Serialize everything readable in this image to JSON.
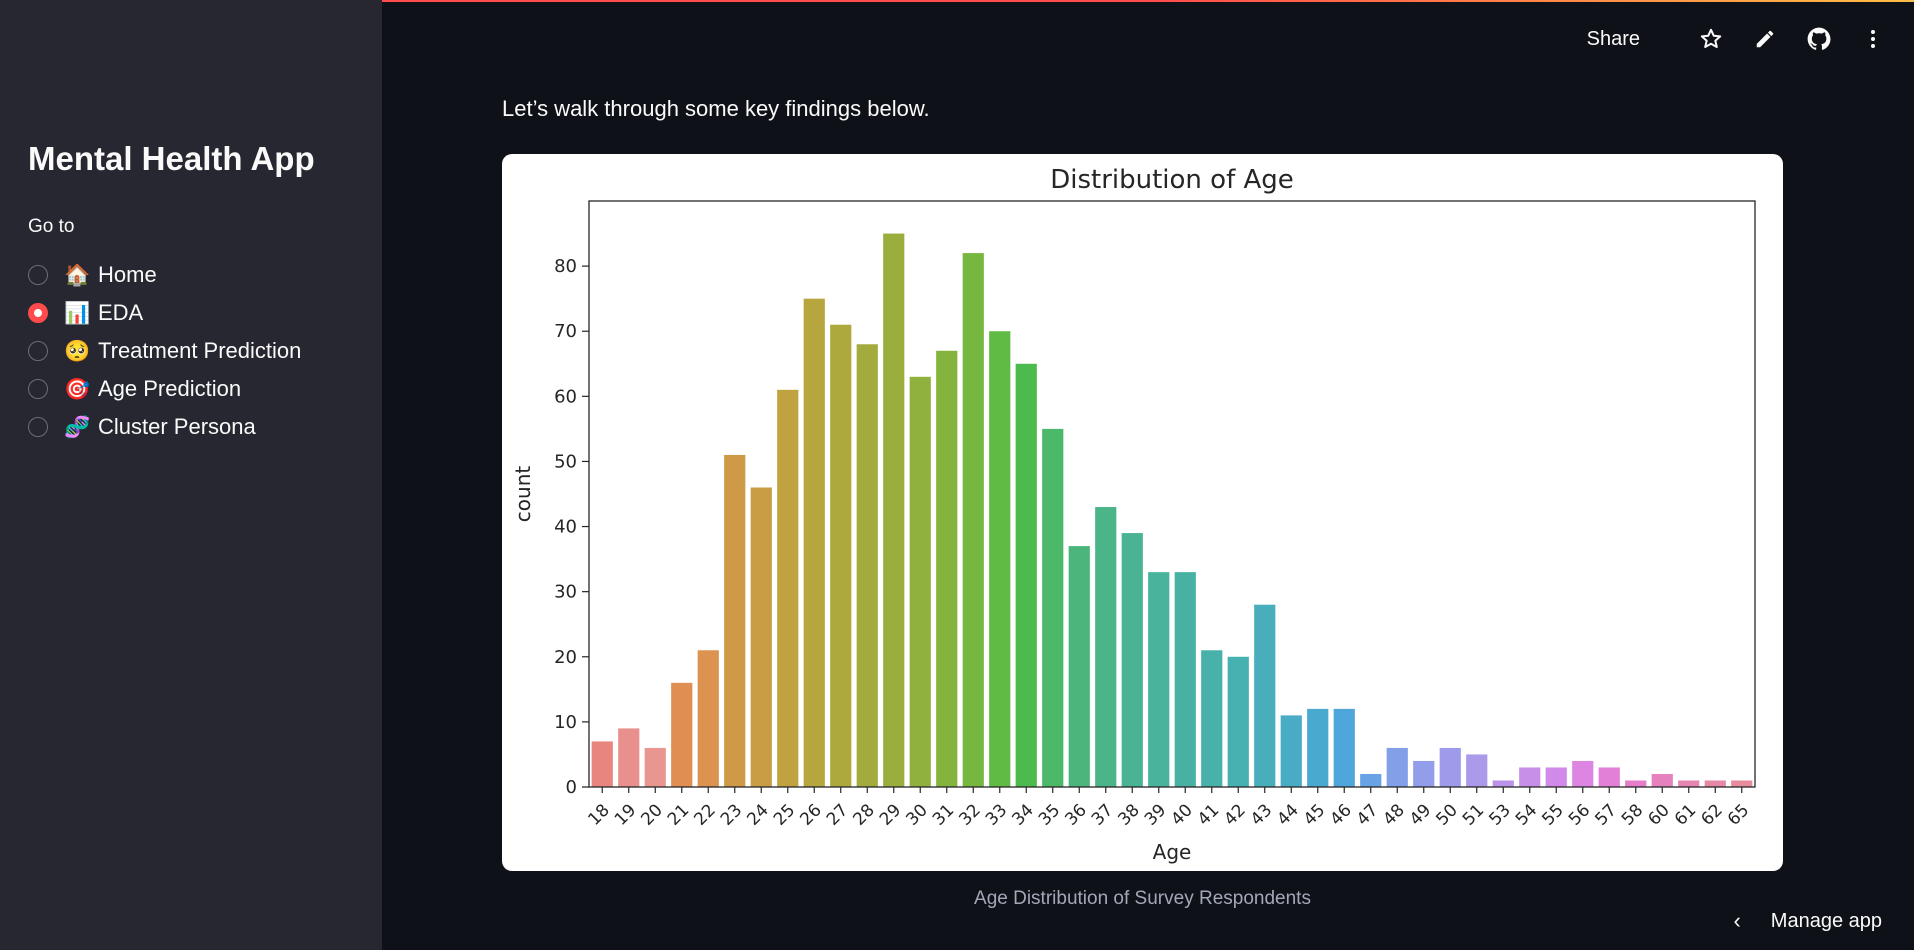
{
  "sidebar": {
    "title": "Mental Health App",
    "nav_label": "Go to",
    "items": [
      {
        "emoji": "🏠",
        "label": "Home",
        "selected": false
      },
      {
        "emoji": "📊",
        "label": "EDA",
        "selected": true
      },
      {
        "emoji": "🥺",
        "label": "Treatment Prediction",
        "selected": false
      },
      {
        "emoji": "🎯",
        "label": "Age Prediction",
        "selected": false
      },
      {
        "emoji": "🧬",
        "label": "Cluster Persona",
        "selected": false
      }
    ]
  },
  "toolbar": {
    "share_label": "Share",
    "icons": [
      "star-icon",
      "pencil-icon",
      "github-icon",
      "more-vertical-icon"
    ]
  },
  "main": {
    "intro": "Let’s walk through some key findings below.",
    "caption": "Age Distribution of Survey Respondents"
  },
  "footer": {
    "manage_label": "Manage app"
  },
  "colors": {
    "accent": "#ff4b4b",
    "background": "#0e1117",
    "sidebar": "#262730"
  },
  "chart_data": {
    "type": "bar",
    "title": "Distribution of Age",
    "xlabel": "Age",
    "ylabel": "count",
    "ylim": [
      0,
      90
    ],
    "yticks": [
      0,
      10,
      20,
      30,
      40,
      50,
      60,
      70,
      80
    ],
    "categories": [
      "18",
      "19",
      "20",
      "21",
      "22",
      "23",
      "24",
      "25",
      "26",
      "27",
      "28",
      "29",
      "30",
      "31",
      "32",
      "33",
      "34",
      "35",
      "36",
      "37",
      "38",
      "39",
      "40",
      "41",
      "42",
      "43",
      "44",
      "45",
      "46",
      "47",
      "48",
      "49",
      "50",
      "51",
      "53",
      "54",
      "55",
      "56",
      "57",
      "58",
      "60",
      "61",
      "62",
      "65"
    ],
    "values": [
      7,
      9,
      6,
      16,
      21,
      51,
      46,
      61,
      75,
      71,
      68,
      85,
      63,
      67,
      82,
      70,
      65,
      55,
      37,
      43,
      39,
      33,
      33,
      21,
      20,
      28,
      11,
      12,
      12,
      2,
      6,
      4,
      6,
      5,
      1,
      3,
      3,
      4,
      3,
      1,
      2,
      1,
      1,
      1
    ],
    "colors": [
      "#e8857f",
      "#e8908d",
      "#e8968f",
      "#e08e52",
      "#dc9350",
      "#cf9a47",
      "#c99d43",
      "#c0a340",
      "#b7a63e",
      "#ada93d",
      "#a4ab3e",
      "#9aae3e",
      "#91b13e",
      "#85b43e",
      "#76b73f",
      "#5fbb43",
      "#4dba4d",
      "#4bb86a",
      "#4cb57c",
      "#4bb488",
      "#4ab393",
      "#49b39c",
      "#48b2a2",
      "#48b1aa",
      "#47b0b1",
      "#48aebb",
      "#49acc4",
      "#4aa9cf",
      "#4ea6da",
      "#6aa2e6",
      "#82a0e8",
      "#929ee9",
      "#9e9cea",
      "#ab99ea",
      "#bb94ea",
      "#c88fe9",
      "#d28aea",
      "#dd85e3",
      "#e180d6",
      "#e47ec8",
      "#e581bc",
      "#e585b1",
      "#e689a7",
      "#e78c9d"
    ]
  }
}
